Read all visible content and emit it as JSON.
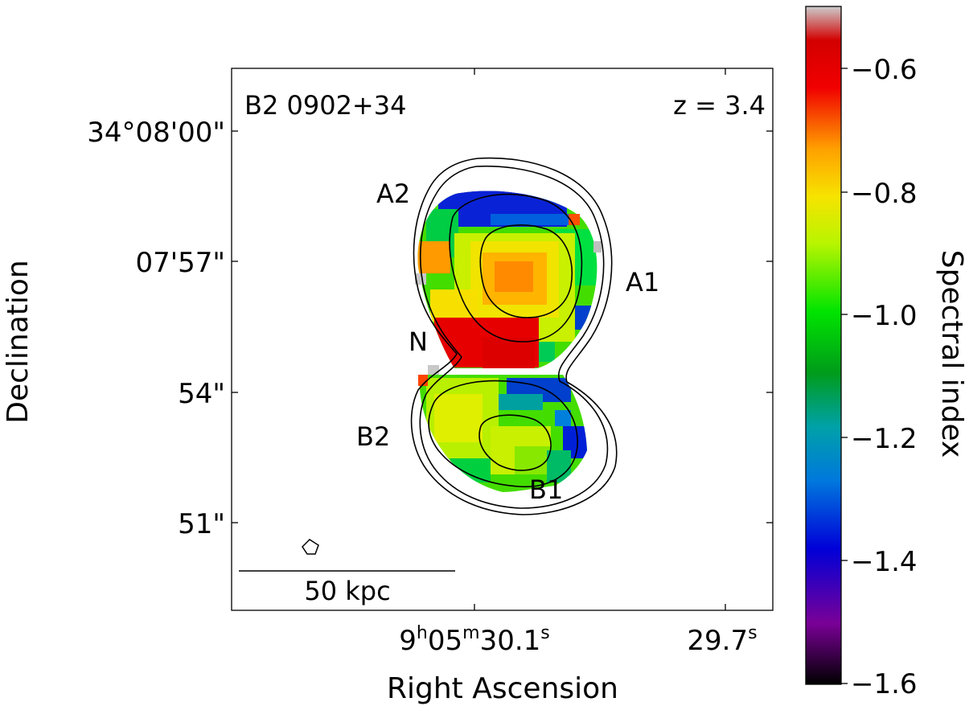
{
  "chart_data": {
    "type": "heatmap",
    "title": "B2 0902+34",
    "redshift_label": "z = 3.4",
    "xlabel": "Right Ascension",
    "ylabel": "Declination",
    "x_ticks": [
      {
        "h": "9",
        "m": "05",
        "s": "30.1",
        "label": "9h05m30.1s"
      },
      {
        "s": "29.7",
        "label": "29.7s"
      }
    ],
    "y_ticks": [
      "34°08'00\"",
      "07'57\"",
      "54\"",
      "51\""
    ],
    "colorbar": {
      "label": "Spectral index",
      "range": [
        -1.6,
        -0.5
      ],
      "ticks": [
        "−0.6",
        "−0.8",
        "−1.0",
        "−1.2",
        "−1.4",
        "−1.6"
      ],
      "colormap": "nipy_spectral"
    },
    "annotations": [
      "A2",
      "A1",
      "N",
      "B2",
      "B1"
    ],
    "scale_bar": "50 kpc",
    "regions": [
      {
        "name": "A1",
        "peak_spectral_index": -0.72
      },
      {
        "name": "A2",
        "spectral_index": -1.45
      },
      {
        "name": "N",
        "spectral_index": -0.6
      },
      {
        "name": "B1",
        "spectral_index": -0.9
      },
      {
        "name": "B2",
        "spectral_index": -0.92
      }
    ],
    "contours": "black contours of total intensity (3 levels)"
  }
}
